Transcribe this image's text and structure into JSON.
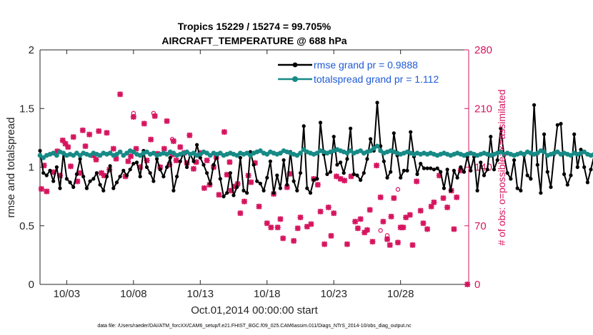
{
  "chart_data": {
    "type": "line",
    "title_line1": "Tropics 15229 / 15274 = 99.705%",
    "title_line2": "AIRCRAFT_TEMPERATURE @ 688 hPa",
    "xlabel": "Oct.01,2014 00:00:00 start",
    "ylabel_left": "rmse and totalspread",
    "ylabel_right": "# of obs: o=possible; ×=assimilated",
    "xlim": [
      1,
      33.1
    ],
    "ylim_left": [
      0,
      2
    ],
    "ylim_right": [
      0,
      280
    ],
    "x_ticks": [
      3,
      8,
      13,
      18,
      23,
      28
    ],
    "x_tick_labels": [
      "10/03",
      "10/08",
      "10/13",
      "10/18",
      "10/23",
      "10/28"
    ],
    "y_ticks_left": [
      0,
      0.5,
      1,
      1.5,
      2
    ],
    "y_tick_labels_left": [
      "0",
      "0.5",
      "1",
      "1.5",
      "2"
    ],
    "y_ticks_right": [
      0,
      70,
      140,
      210,
      280
    ],
    "y_tick_labels_right": [
      "0",
      "70",
      "140",
      "210",
      "280"
    ],
    "x_start": 1.0,
    "x_step": 0.25,
    "series": [
      {
        "name": "rmse grand pr = 0.9888",
        "axis": "left",
        "color": "#000000",
        "values": [
          1.14,
          0.95,
          0.93,
          0.97,
          0.88,
          1.0,
          0.82,
          1.12,
          0.9,
          0.87,
          0.83,
          0.94,
          1.07,
          0.92,
          0.82,
          0.88,
          0.9,
          0.95,
          0.85,
          0.8,
          0.92,
          1.01,
          0.82,
          0.87,
          0.92,
          0.97,
          0.93,
          0.98,
          1.03,
          1.04,
          0.92,
          1.14,
          1.0,
          0.95,
          0.88,
          1.07,
          0.98,
          0.92,
          1.0,
          1.08,
          0.8,
          0.92,
          1.05,
          1.12,
          1.0,
          1.11,
          1.05,
          1.19,
          1.08,
          1.02,
          0.95,
          0.86,
          1.02,
          1.1,
          0.9,
          0.75,
          0.78,
          0.95,
          0.76,
          0.83,
          1.08,
          0.8,
          0.78,
          1.13,
          1.02,
          0.88,
          0.86,
          0.8,
          0.91,
          1.05,
          0.78,
          0.93,
          0.82,
          1.06,
          0.85,
          1.13,
          0.88,
          0.8,
          0.95,
          1.35,
          0.82,
          0.78,
          0.89,
          0.9,
          1.38,
          1.11,
          0.94,
          0.96,
          1.26,
          1.02,
          1.04,
          0.95,
          1.07,
          1.33,
          0.94,
          0.93,
          0.89,
          0.95,
          1.07,
          1.24,
          1.14,
          1.55,
          1.18,
          1.05,
          0.91,
          0.96,
          1.29,
          1.1,
          0.91,
          0.97,
          0.97,
          1.3,
          1.09,
          0.94,
          1.03,
          0.99,
          0.99,
          0.99,
          0.98,
          0.99,
          0.96,
          0.82,
          0.98,
          0.8,
          0.97,
          0.91,
          1.0,
          0.96,
          1.09,
          0.97,
          1.09,
          0.8,
          1.04,
          0.93,
          0.98,
          1.26,
          0.98,
          1.06,
          1.33,
          1.1,
          0.95,
          0.9,
          1.06,
          0.82,
          0.8,
          1.1,
          0.93,
          0.9,
          1.53,
          1.02,
          0.78,
          1.28,
          0.96,
          0.83,
          1.11,
          1.36,
          1.37,
          0.94,
          0.85,
          0.93,
          1.28,
          1.0,
          1.15,
          1.0,
          0.87,
          0.98,
          1.1,
          0.83,
          0.9,
          0.94,
          1.28,
          0.82,
          1.0,
          0.92
        ]
      },
      {
        "name": "totalspread grand pr = 1.112",
        "axis": "left",
        "color": "#178a86",
        "values": [
          1.1,
          1.08,
          1.1,
          1.11,
          1.12,
          1.1,
          1.13,
          1.12,
          1.1,
          1.11,
          1.1,
          1.12,
          1.1,
          1.12,
          1.11,
          1.1,
          1.12,
          1.11,
          1.1,
          1.12,
          1.11,
          1.12,
          1.1,
          1.11,
          1.13,
          1.1,
          1.12,
          1.14,
          1.13,
          1.11,
          1.1,
          1.12,
          1.13,
          1.11,
          1.12,
          1.1,
          1.11,
          1.12,
          1.11,
          1.13,
          1.12,
          1.1,
          1.11,
          1.12,
          1.13,
          1.11,
          1.12,
          1.1,
          1.11,
          1.13,
          1.12,
          1.1,
          1.12,
          1.11,
          1.12,
          1.1,
          1.11,
          1.12,
          1.11,
          1.1,
          1.12,
          1.11,
          1.12,
          1.1,
          1.12,
          1.13,
          1.14,
          1.12,
          1.11,
          1.13,
          1.12,
          1.11,
          1.12,
          1.14,
          1.13,
          1.12,
          1.11,
          1.1,
          1.12,
          1.15,
          1.13,
          1.12,
          1.11,
          1.12,
          1.14,
          1.13,
          1.12,
          1.13,
          1.14,
          1.15,
          1.14,
          1.13,
          1.12,
          1.14,
          1.12,
          1.13,
          1.14,
          1.12,
          1.13,
          1.14,
          1.16,
          1.18,
          1.14,
          1.12,
          1.13,
          1.14,
          1.13,
          1.12,
          1.11,
          1.12,
          1.13,
          1.12,
          1.11,
          1.12,
          1.11,
          1.12,
          1.11,
          1.12,
          1.11,
          1.1,
          1.11,
          1.12,
          1.11,
          1.1,
          1.11,
          1.12,
          1.11,
          1.1,
          1.11,
          1.12,
          1.11,
          1.1,
          1.11,
          1.12,
          1.11,
          1.1,
          1.11,
          1.12,
          1.13,
          1.11,
          1.12,
          1.11,
          1.1,
          1.11,
          1.12,
          1.11,
          1.13,
          1.12,
          1.11,
          1.12,
          1.14,
          1.13,
          1.1,
          1.11,
          1.12,
          1.13,
          1.11,
          1.12,
          1.11,
          1.1,
          1.12,
          1.11,
          1.12,
          1.13,
          1.11,
          1.1,
          1.11,
          1.12,
          1.11,
          1.12,
          1.11,
          1.1,
          1.1,
          1.11
        ]
      }
    ],
    "obs_series": {
      "name": "# of obs",
      "axis": "right",
      "color": "#d6155f",
      "points": [
        [
          1.1,
          114
        ],
        [
          1.5,
          111
        ],
        [
          1.3,
          142
        ],
        [
          2.0,
          134
        ],
        [
          2.3,
          159
        ],
        [
          2.5,
          130
        ],
        [
          2.7,
          172
        ],
        [
          2.9,
          168
        ],
        [
          3.1,
          164
        ],
        [
          3.3,
          141
        ],
        [
          3.5,
          176
        ],
        [
          3.8,
          123
        ],
        [
          4.0,
          133
        ],
        [
          4.2,
          184
        ],
        [
          4.4,
          165
        ],
        [
          4.7,
          179
        ],
        [
          5.0,
          154
        ],
        [
          5.2,
          149
        ],
        [
          5.4,
          183
        ],
        [
          5.6,
          133
        ],
        [
          5.8,
          130
        ],
        [
          6.0,
          181
        ],
        [
          6.2,
          137
        ],
        [
          6.5,
          162
        ],
        [
          6.7,
          150
        ],
        [
          7.0,
          227
        ],
        [
          7.4,
          129
        ],
        [
          7.6,
          147
        ],
        [
          7.8,
          153
        ],
        [
          8.0,
          200
        ],
        [
          8.2,
          162
        ],
        [
          8.5,
          140
        ],
        [
          8.8,
          192
        ],
        [
          9.0,
          148
        ],
        [
          9.3,
          173
        ],
        [
          9.6,
          201
        ],
        [
          9.8,
          156
        ],
        [
          10.0,
          140
        ],
        [
          10.3,
          162
        ],
        [
          10.5,
          195
        ],
        [
          10.7,
          143
        ],
        [
          10.9,
          155
        ],
        [
          11.0,
          171
        ],
        [
          11.2,
          148
        ],
        [
          11.5,
          164
        ],
        [
          11.8,
          157
        ],
        [
          12.0,
          145
        ],
        [
          12.2,
          178
        ],
        [
          12.5,
          138
        ],
        [
          12.7,
          146
        ],
        [
          13.0,
          157
        ],
        [
          13.3,
          115
        ],
        [
          13.5,
          148
        ],
        [
          13.7,
          119
        ],
        [
          14.0,
          140
        ],
        [
          14.2,
          152
        ],
        [
          14.4,
          107
        ],
        [
          14.8,
          182
        ],
        [
          15.0,
          131
        ],
        [
          15.2,
          146
        ],
        [
          15.3,
          112
        ],
        [
          15.6,
          117
        ],
        [
          15.8,
          120
        ],
        [
          16.0,
          85
        ],
        [
          16.3,
          99
        ],
        [
          16.6,
          130
        ],
        [
          16.8,
          122
        ],
        [
          17.1,
          145
        ],
        [
          17.4,
          93
        ],
        [
          18.0,
          73
        ],
        [
          18.3,
          68
        ],
        [
          18.5,
          108
        ],
        [
          18.8,
          68
        ],
        [
          19.0,
          78
        ],
        [
          19.2,
          55
        ],
        [
          19.5,
          116
        ],
        [
          19.7,
          132
        ],
        [
          20.0,
          52
        ],
        [
          20.3,
          67
        ],
        [
          20.5,
          80
        ],
        [
          21.0,
          69
        ],
        [
          21.3,
          72
        ],
        [
          21.5,
          126
        ],
        [
          21.8,
          119
        ],
        [
          22.0,
          87
        ],
        [
          22.3,
          48
        ],
        [
          22.6,
          92
        ],
        [
          22.8,
          58
        ],
        [
          23.0,
          85
        ],
        [
          23.2,
          129
        ],
        [
          23.5,
          126
        ],
        [
          23.8,
          124
        ],
        [
          24.0,
          48
        ],
        [
          24.3,
          129
        ],
        [
          24.6,
          75
        ],
        [
          24.8,
          67
        ],
        [
          25.0,
          78
        ],
        [
          25.3,
          62
        ],
        [
          25.5,
          65
        ],
        [
          25.7,
          89
        ],
        [
          25.9,
          51
        ],
        [
          26.2,
          142
        ],
        [
          26.5,
          104
        ],
        [
          26.7,
          75
        ],
        [
          27.0,
          54
        ],
        [
          27.2,
          47
        ],
        [
          27.3,
          81
        ],
        [
          27.5,
          103
        ],
        [
          27.8,
          50
        ],
        [
          28.0,
          68
        ],
        [
          28.2,
          68
        ],
        [
          28.4,
          80
        ],
        [
          28.7,
          83
        ],
        [
          28.9,
          47
        ],
        [
          29.2,
          123
        ],
        [
          29.5,
          88
        ],
        [
          29.7,
          73
        ],
        [
          30.0,
          66
        ],
        [
          30.3,
          93
        ],
        [
          30.5,
          98
        ],
        [
          30.9,
          130
        ],
        [
          31.2,
          103
        ],
        [
          31.5,
          92
        ],
        [
          31.8,
          112
        ],
        [
          32.0,
          66
        ],
        [
          32.2,
          104
        ],
        [
          32.5,
          136
        ],
        [
          33.0,
          0
        ]
      ],
      "possible_markers": [
        [
          8.0,
          201
        ],
        [
          9.5,
          201
        ],
        [
          10.9,
          170
        ],
        [
          26.5,
          61
        ],
        [
          27.8,
          110
        ],
        [
          27.0,
          55
        ]
      ]
    },
    "legend_position": "top-right"
  },
  "footnote": "data file: /Users/raeder/DAI/ATM_forcXX/CAM6_setup/f.e21.FHIST_BGC.f09_025.CAM6assim.011/Diags_NTrS_2014-10/obs_diag_output.nc"
}
